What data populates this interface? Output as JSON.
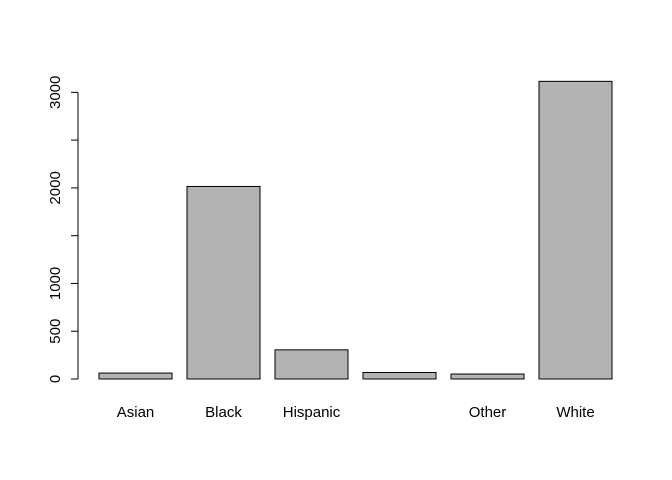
{
  "chart_data": {
    "type": "bar",
    "title": "",
    "xlabel": "",
    "ylabel": "",
    "categories": [
      "Asian",
      "Black",
      "Hispanic",
      "",
      "Other",
      "White"
    ],
    "values": [
      62,
      2015,
      305,
      68,
      52,
      3115
    ],
    "ylim": [
      0,
      3150
    ],
    "yticks": [
      0,
      500,
      1000,
      1500,
      2000,
      2500,
      3000
    ],
    "ytick_labels": [
      "0",
      "500",
      "1000",
      "",
      "2000",
      "",
      "3000"
    ],
    "grid": false,
    "legend": "none",
    "colors": {
      "bar_fill": "#b3b3b3",
      "bar_stroke": "#000000",
      "axis": "#000000",
      "background": "#ffffff"
    }
  }
}
